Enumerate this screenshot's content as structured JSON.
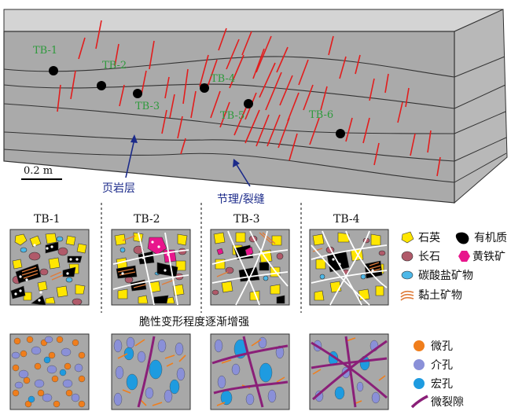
{
  "block": {
    "sample_labels": [
      "TB-1",
      "TB-2",
      "TB-3",
      "TB-4",
      "TB-5",
      "TB-6"
    ],
    "scale_label": "0.2 m",
    "bedding_label": "页岩层",
    "fracture_label": "节理/裂缝"
  },
  "panels": {
    "headings": [
      "TB-1",
      "TB-2",
      "TB-3",
      "TB-4"
    ],
    "middle_caption": "脆性变形程度逐渐增强"
  },
  "mineral_legend": [
    {
      "label": "石英",
      "color": "#ffe600",
      "icon": "quartz-icon"
    },
    {
      "label": "有机质",
      "color": "#000000",
      "icon": "organic-matter-icon"
    },
    {
      "label": "长石",
      "color": "#b05a6a",
      "icon": "feldspar-icon"
    },
    {
      "label": "黄铁矿",
      "color": "#e8168c",
      "icon": "pyrite-icon"
    },
    {
      "label": "碳酸盐矿物",
      "color": "#4db8e8",
      "icon": "carbonate-icon"
    },
    {
      "label": "黏土矿物",
      "color": "#e07b39",
      "icon": "clay-icon"
    }
  ],
  "pore_legend": [
    {
      "label": "微孔",
      "color": "#f07e1c",
      "icon": "micropore-icon"
    },
    {
      "label": "介孔",
      "color": "#8a90d8",
      "icon": "mesopore-icon"
    },
    {
      "label": "宏孔",
      "color": "#1e9be0",
      "icon": "macropore-icon"
    },
    {
      "label": "微裂隙",
      "color": "#8a1f78",
      "icon": "microfracture-icon"
    }
  ]
}
